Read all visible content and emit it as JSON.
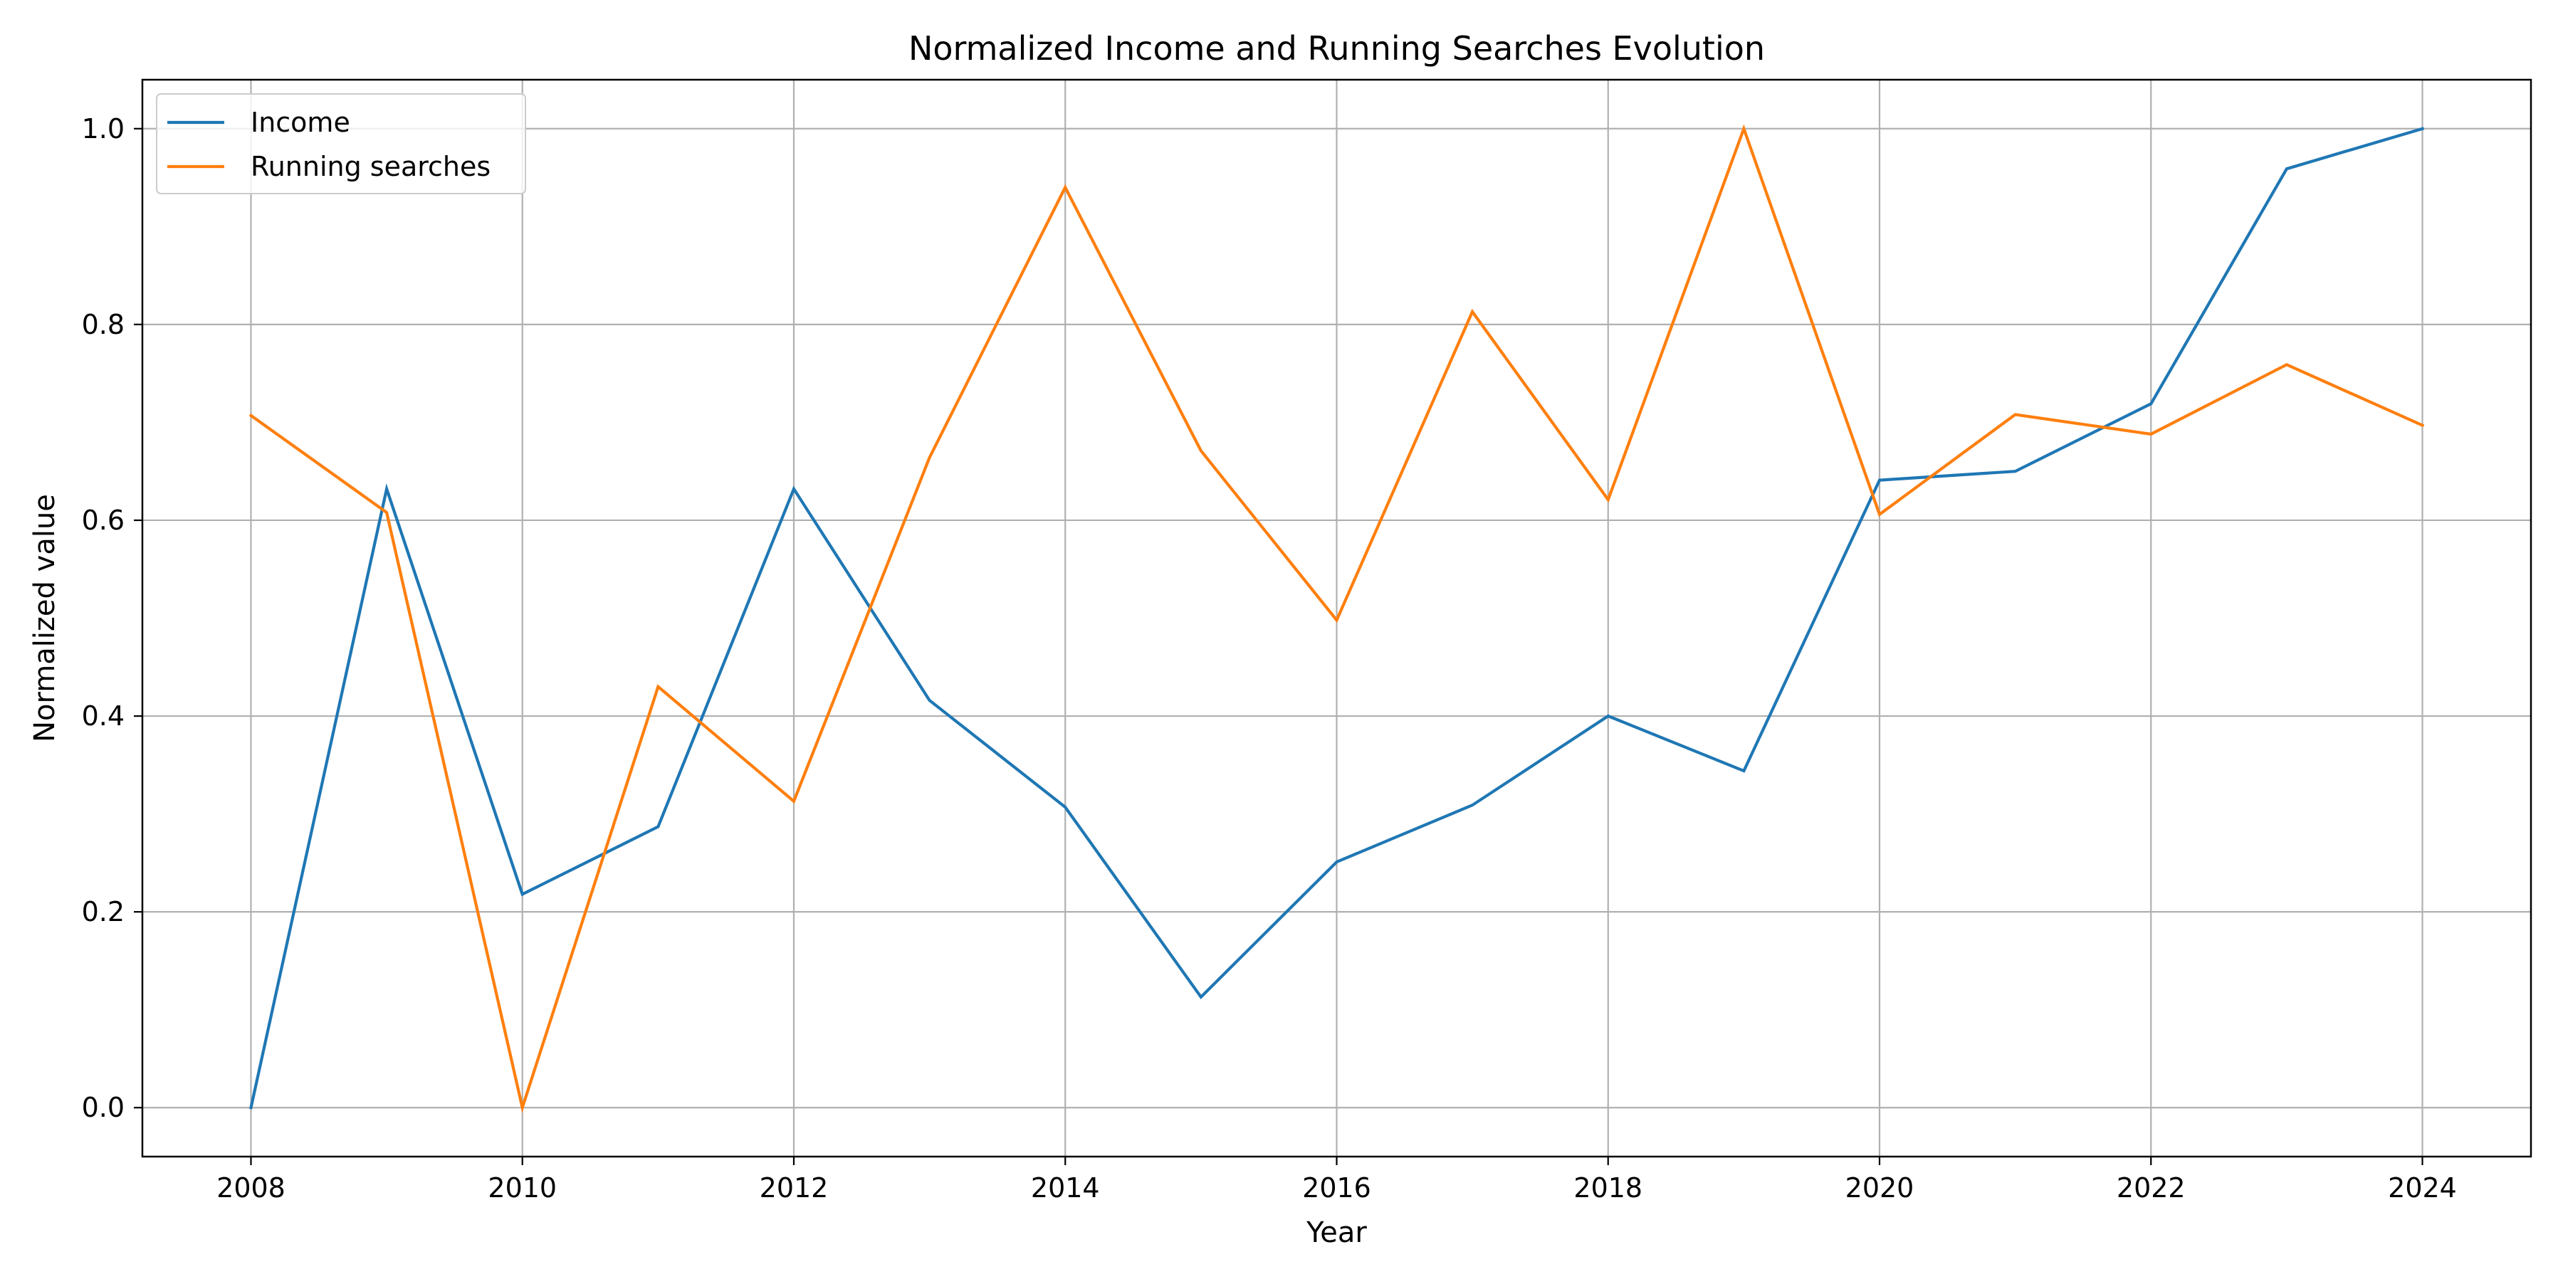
{
  "chart_data": {
    "type": "line",
    "title": "Normalized Income and Running Searches Evolution",
    "xlabel": "Year",
    "ylabel": "Normalized value",
    "x": [
      2008,
      2009,
      2010,
      2011,
      2012,
      2013,
      2014,
      2015,
      2016,
      2017,
      2018,
      2019,
      2020,
      2021,
      2022,
      2023,
      2024
    ],
    "xlim": [
      2007.2,
      2024.8
    ],
    "ylim": [
      -0.05,
      1.05
    ],
    "xticks": [
      2008,
      2010,
      2012,
      2014,
      2016,
      2018,
      2020,
      2022,
      2024
    ],
    "xtick_labels": [
      "2008",
      "2010",
      "2012",
      "2014",
      "2016",
      "2018",
      "2020",
      "2022",
      "2024"
    ],
    "yticks": [
      0.0,
      0.2,
      0.4,
      0.6,
      0.8,
      1.0
    ],
    "ytick_labels": [
      "0.0",
      "0.2",
      "0.4",
      "0.6",
      "0.8",
      "1.0"
    ],
    "grid": true,
    "legend_position": "top-left",
    "series": [
      {
        "name": "Income",
        "color": "#1f77b4",
        "values": [
          0.0,
          0.632,
          0.218,
          0.287,
          0.632,
          0.416,
          0.307,
          0.113,
          0.251,
          0.309,
          0.4,
          0.344,
          0.641,
          0.65,
          0.719,
          0.959,
          1.0
        ]
      },
      {
        "name": "Running searches",
        "color": "#ff7f0e",
        "values": [
          0.707,
          0.608,
          0.0,
          0.43,
          0.313,
          0.664,
          0.94,
          0.671,
          0.498,
          0.813,
          0.621,
          1.0,
          0.606,
          0.708,
          0.688,
          0.759,
          0.697
        ]
      }
    ]
  }
}
